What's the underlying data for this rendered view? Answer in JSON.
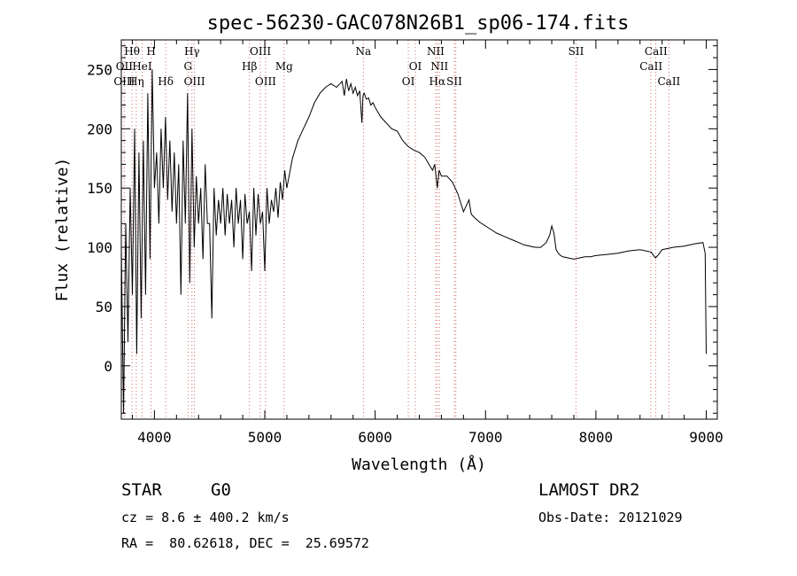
{
  "chart_data": {
    "type": "line",
    "title": "spec-56230-GAC078N26B1_sp06-174.fits",
    "xlabel": "Wavelength (Å)",
    "ylabel": "Flux (relative)",
    "xlim": [
      3700,
      9100
    ],
    "ylim": [
      -45,
      275
    ],
    "xticks": [
      4000,
      5000,
      6000,
      7000,
      8000,
      9000
    ],
    "yticks": [
      0,
      50,
      100,
      150,
      200,
      250
    ],
    "grid": false,
    "series": [
      {
        "x": [
          3700,
          3720,
          3740,
          3760,
          3780,
          3800,
          3820,
          3840,
          3860,
          3880,
          3900,
          3920,
          3940,
          3960,
          3980,
          4000,
          4020,
          4040,
          4060,
          4080,
          4100,
          4120,
          4140,
          4160,
          4180,
          4200,
          4220,
          4240,
          4260,
          4280,
          4300,
          4320,
          4340,
          4360,
          4380,
          4400,
          4420,
          4440,
          4460,
          4480,
          4500,
          4520,
          4540,
          4560,
          4580,
          4600,
          4620,
          4640,
          4660,
          4680,
          4700,
          4720,
          4740,
          4760,
          4780,
          4800,
          4820,
          4840,
          4860,
          4880,
          4900,
          4920,
          4940,
          4960,
          4980,
          5000,
          5020,
          5040,
          5060,
          5080,
          5100,
          5120,
          5140,
          5160,
          5180,
          5200,
          5250,
          5300,
          5350,
          5400,
          5450,
          5500,
          5550,
          5600,
          5650,
          5700,
          5720,
          5740,
          5760,
          5780,
          5800,
          5820,
          5840,
          5860,
          5880,
          5890,
          5900,
          5920,
          5940,
          5960,
          5980,
          6000,
          6050,
          6100,
          6150,
          6200,
          6250,
          6300,
          6350,
          6400,
          6450,
          6500,
          6520,
          6540,
          6563,
          6580,
          6600,
          6650,
          6700,
          6750,
          6800,
          6850,
          6870,
          6900,
          6950,
          7000,
          7050,
          7100,
          7150,
          7200,
          7250,
          7300,
          7350,
          7400,
          7450,
          7500,
          7550,
          7580,
          7600,
          7620,
          7640,
          7660,
          7680,
          7700,
          7750,
          7800,
          7850,
          7900,
          7950,
          8000,
          8100,
          8200,
          8300,
          8400,
          8500,
          8540,
          8560,
          8600,
          8700,
          8800,
          8900,
          8970,
          8990,
          9000
        ],
        "y": [
          100,
          -40,
          120,
          20,
          150,
          60,
          200,
          10,
          180,
          40,
          190,
          60,
          230,
          90,
          250,
          150,
          180,
          120,
          200,
          150,
          210,
          140,
          190,
          130,
          180,
          120,
          170,
          60,
          190,
          120,
          230,
          70,
          200,
          100,
          160,
          120,
          150,
          90,
          170,
          120,
          120,
          40,
          150,
          110,
          140,
          120,
          150,
          110,
          145,
          120,
          140,
          100,
          150,
          120,
          140,
          90,
          145,
          120,
          130,
          80,
          150,
          110,
          145,
          120,
          130,
          80,
          150,
          120,
          140,
          130,
          150,
          125,
          155,
          140,
          165,
          150,
          175,
          190,
          200,
          210,
          222,
          230,
          235,
          238,
          235,
          240,
          228,
          242,
          232,
          238,
          230,
          235,
          228,
          232,
          205,
          228,
          230,
          225,
          226,
          220,
          222,
          218,
          210,
          205,
          200,
          198,
          190,
          185,
          182,
          180,
          176,
          168,
          165,
          170,
          150,
          165,
          160,
          160,
          155,
          145,
          130,
          140,
          128,
          125,
          121,
          118,
          115,
          112,
          110,
          108,
          106,
          104,
          102,
          101,
          100,
          100,
          104,
          110,
          118,
          112,
          98,
          95,
          93,
          92,
          91,
          90,
          91,
          92,
          92,
          93,
          94,
          95,
          97,
          98,
          96,
          91,
          93,
          98,
          100,
          101,
          103,
          104,
          95,
          10
        ]
      }
    ],
    "annotations": [
      {
        "label": "Hθ",
        "x": 3797,
        "row": 1
      },
      {
        "label": "H",
        "x": 3970,
        "row": 1
      },
      {
        "label": "Hγ",
        "x": 4340,
        "row": 1
      },
      {
        "label": "OIII",
        "x": 4960,
        "row": 1
      },
      {
        "label": "Na",
        "x": 5893,
        "row": 1
      },
      {
        "label": "NII",
        "x": 6548,
        "row": 1
      },
      {
        "label": "SII",
        "x": 7820,
        "row": 1
      },
      {
        "label": "CaII",
        "x": 8545,
        "row": 1
      },
      {
        "label": "OII",
        "x": 3727,
        "row": 2
      },
      {
        "label": "HeI",
        "x": 3888,
        "row": 2
      },
      {
        "label": "G",
        "x": 4304,
        "row": 2
      },
      {
        "label": "Hβ",
        "x": 4861,
        "row": 2
      },
      {
        "label": "Mg",
        "x": 5175,
        "row": 2
      },
      {
        "label": "OI",
        "x": 6364,
        "row": 2
      },
      {
        "label": "NII",
        "x": 6583,
        "row": 2
      },
      {
        "label": "CaII",
        "x": 8500,
        "row": 2
      },
      {
        "label": "OIII",
        "x": 3727,
        "row": 3
      },
      {
        "label": "Hη",
        "x": 3835,
        "row": 3
      },
      {
        "label": "Hδ",
        "x": 4102,
        "row": 3
      },
      {
        "label": "OIII",
        "x": 4363,
        "row": 3
      },
      {
        "label": "OIII",
        "x": 5007,
        "row": 3
      },
      {
        "label": "OI",
        "x": 6300,
        "row": 3
      },
      {
        "label": "Hα",
        "x": 6563,
        "row": 3
      },
      {
        "label": "SII",
        "x": 6717,
        "row": 3
      },
      {
        "label": "CaII",
        "x": 8662,
        "row": 3
      }
    ],
    "line_marks": [
      3727,
      3797,
      3835,
      3889,
      3970,
      4102,
      4304,
      4340,
      4363,
      4861,
      4959,
      5007,
      5175,
      5893,
      6300,
      6364,
      6548,
      6563,
      6583,
      6717,
      6731,
      7820,
      8498,
      8542,
      8662
    ]
  },
  "info": {
    "object_type": "STAR",
    "subclass": "G0",
    "survey": "LAMOST DR2",
    "cz": "cz = 8.6 ± 400.2 km/s",
    "obs_date": "Obs-Date: 20121029",
    "coords": "RA =  80.62618, DEC =  25.69572"
  }
}
